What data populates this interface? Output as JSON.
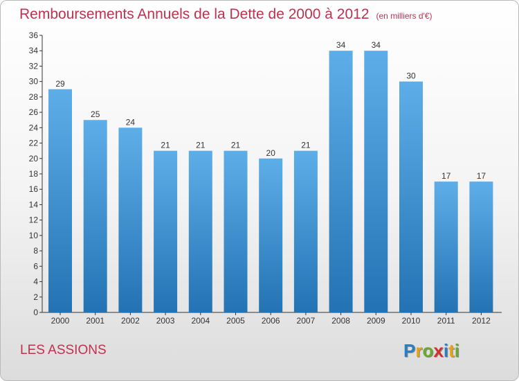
{
  "header": {
    "title": "Remboursements Annuels de la Dette de 2000 à 2012",
    "unit": "(en milliers d'€)"
  },
  "commune": "LES ASSIONS",
  "logo": {
    "letters": [
      {
        "char": "P",
        "color": "#2a7fc4"
      },
      {
        "char": "r",
        "color": "#e8a21a"
      },
      {
        "char": "o",
        "color": "#6aa82e"
      },
      {
        "char": "x",
        "color": "#d2302c"
      },
      {
        "char": "i",
        "color": "#2a7fc4"
      },
      {
        "char": "t",
        "color": "#e8a21a"
      },
      {
        "char": "i",
        "color": "#6aa82e"
      }
    ]
  },
  "chart_data": {
    "type": "bar",
    "categories": [
      "2000",
      "2001",
      "2002",
      "2003",
      "2004",
      "2005",
      "2006",
      "2007",
      "2008",
      "2009",
      "2010",
      "2011",
      "2012"
    ],
    "values": [
      29,
      25,
      24,
      21,
      21,
      21,
      20,
      21,
      34,
      34,
      30,
      17,
      17
    ],
    "ylim": [
      0,
      36
    ],
    "yticks": [
      0,
      2,
      4,
      6,
      8,
      10,
      12,
      14,
      16,
      18,
      20,
      22,
      24,
      26,
      28,
      30,
      32,
      34,
      36
    ],
    "grid": false,
    "bar_color_top": "#5daee8",
    "bar_color_bottom": "#2373b4"
  }
}
